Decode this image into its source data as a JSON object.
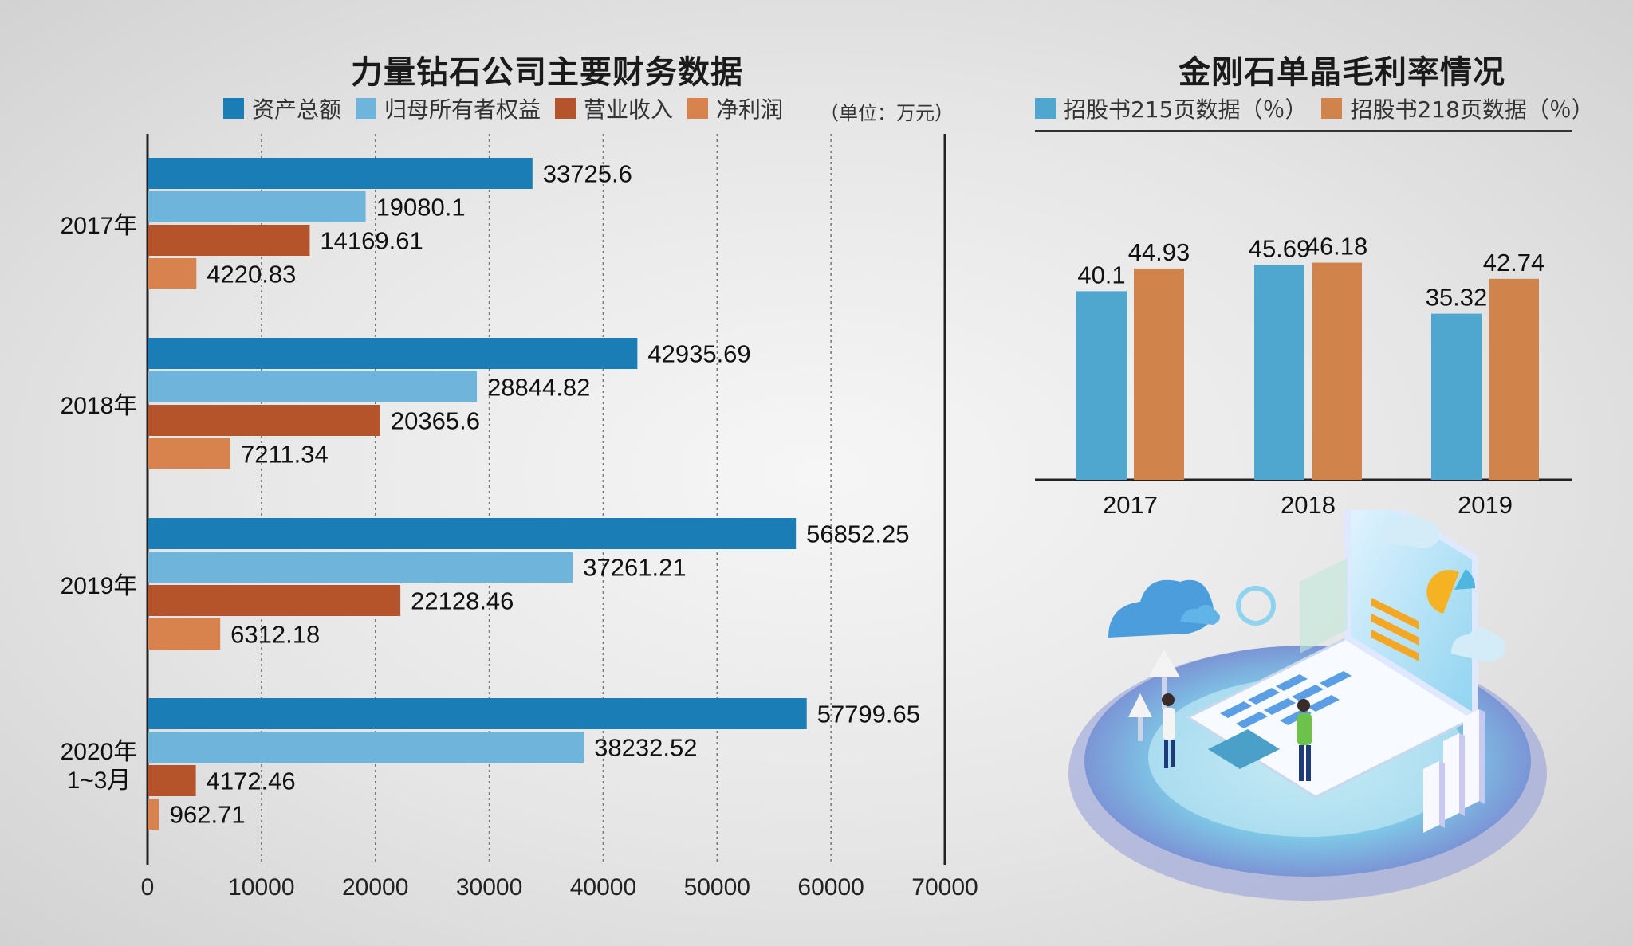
{
  "left": {
    "title": "力量钻石公司主要财务数据",
    "unit": "（单位：万元）",
    "colors": [
      "#1a7db6",
      "#6fb5db",
      "#b5532a",
      "#d8834e"
    ],
    "chart_data": {
      "type": "bar",
      "orientation": "horizontal",
      "title": "力量钻石公司主要财务数据",
      "categories": [
        "2017年",
        "2018年",
        "2019年",
        "2020年\n1~3月"
      ],
      "series": [
        {
          "name": "资产总额",
          "values": [
            33725.6,
            42935.69,
            56852.25,
            57799.65
          ],
          "labels": [
            "33725.6",
            "42935.69",
            "56852.25",
            "57799.65"
          ]
        },
        {
          "name": "归母所有者权益",
          "values": [
            19080.1,
            28844.82,
            37261.21,
            38232.52
          ],
          "labels": [
            "19080.1",
            "28844.82",
            "37261.21",
            "38232.52"
          ]
        },
        {
          "name": "营业收入",
          "values": [
            14169.61,
            20365.6,
            22128.46,
            4172.46
          ],
          "labels": [
            "14169.61",
            "20365.6",
            "22128.46",
            "4172.46"
          ]
        },
        {
          "name": "净利润",
          "values": [
            4220.83,
            7211.34,
            6312.18,
            962.71
          ],
          "labels": [
            "4220.83",
            "7211.34",
            "6312.18",
            "962.71"
          ]
        }
      ],
      "xlim": [
        0,
        70000
      ],
      "xticks": [
        "0",
        "10000",
        "20000",
        "30000",
        "40000",
        "50000",
        "60000",
        "70000"
      ],
      "grid": "vertical dotted",
      "legend": "top"
    }
  },
  "right": {
    "title": "金刚石单晶毛利率情况",
    "colors": [
      "#4fa6cf",
      "#d0834a"
    ],
    "chart_data": {
      "type": "bar",
      "title": "金刚石单晶毛利率情况",
      "categories": [
        "2017",
        "2018",
        "2019"
      ],
      "series": [
        {
          "name": "招股书215页数据（％）",
          "values": [
            40.1,
            45.69,
            35.32
          ],
          "labels": [
            "40.1",
            "45.69",
            "35.32"
          ]
        },
        {
          "name": "招股书218页数据（％）",
          "values": [
            44.93,
            46.18,
            42.74
          ],
          "labels": [
            "44.93",
            "46.18",
            "42.74"
          ]
        }
      ],
      "ylim": [
        0,
        50
      ],
      "legend": "top"
    }
  }
}
